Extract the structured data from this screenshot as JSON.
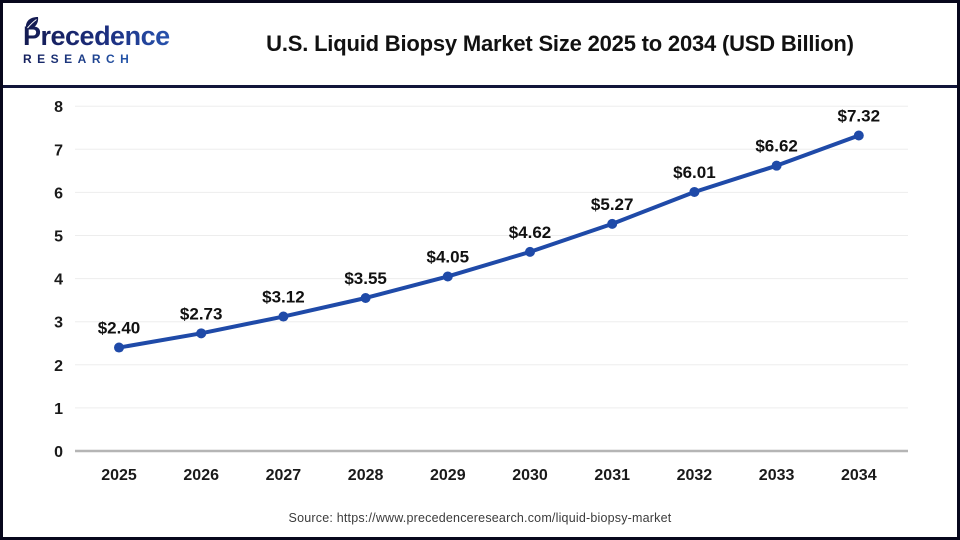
{
  "header": {
    "logo_line1": "Precedence",
    "logo_line2": "RESEARCH",
    "title": "U.S. Liquid Biopsy Market Size 2025 to 2034 (USD Billion)"
  },
  "chart_data": {
    "type": "line",
    "title": "U.S. Liquid Biopsy Market Size 2025 to 2034 (USD Billion)",
    "categories": [
      "2025",
      "2026",
      "2027",
      "2028",
      "2029",
      "2030",
      "2031",
      "2032",
      "2033",
      "2034"
    ],
    "values": [
      2.4,
      2.73,
      3.12,
      3.55,
      4.05,
      4.62,
      5.27,
      6.01,
      6.62,
      7.32
    ],
    "data_labels": [
      "$2.40",
      "$2.73",
      "$3.12",
      "$3.55",
      "$4.05",
      "$4.62",
      "$5.27",
      "$6.01",
      "$6.62",
      "$7.32"
    ],
    "xlabel": "",
    "ylabel": "",
    "ylim": [
      0,
      8
    ],
    "ytick_step": 1,
    "grid": true,
    "legend": "none",
    "line_color": "#1f4aa8",
    "gridline_color": "#ededed",
    "axis_line_color": "#b5b5b5"
  },
  "footer": {
    "source": "Source: https://www.precedenceresearch.com/liquid-biopsy-market"
  }
}
